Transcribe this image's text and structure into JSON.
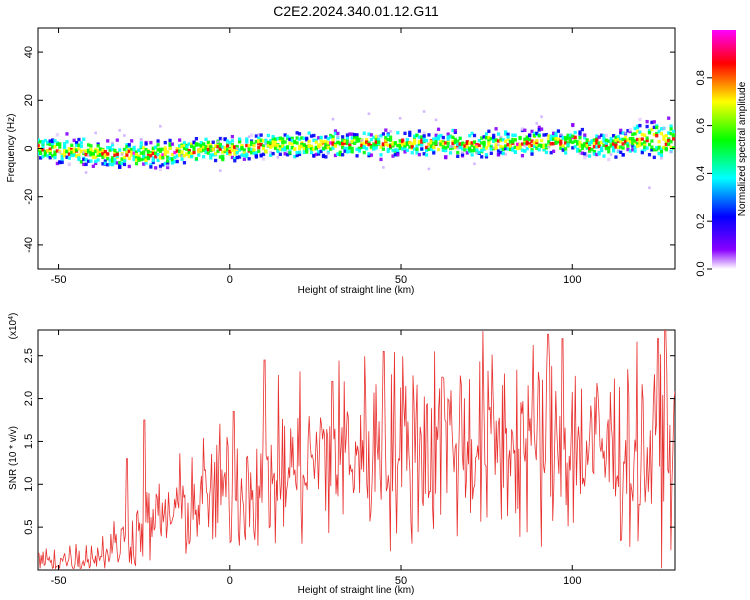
{
  "title": "C2E2.2024.340.01.12.G11",
  "chart_data": [
    {
      "type": "heatmap",
      "xlabel": "Height of straight line (km)",
      "ylabel": "Frequency (Hz)",
      "xlim": [
        -56,
        130
      ],
      "ylim": [
        -50,
        50
      ],
      "xticks": [
        -50,
        0,
        50,
        100
      ],
      "yticks": [
        -40,
        -20,
        0,
        20,
        40
      ],
      "colorbar": {
        "label": "Normalized spectral amplitude",
        "ticks": [
          "0.0",
          "0.2",
          "0.4",
          "0.6",
          "0.8"
        ],
        "range": [
          0,
          1
        ],
        "colors": [
          "#ffffff",
          "#8a00ff",
          "#0000ff",
          "#00ffff",
          "#00ff00",
          "#ffff00",
          "#ff0000",
          "#ff00ff"
        ]
      },
      "ridge": {
        "x": [
          -56,
          -40,
          -20,
          0,
          20,
          40,
          60,
          80,
          100,
          110,
          120,
          130
        ],
        "y": [
          0,
          -2,
          -2,
          0,
          2,
          2,
          2,
          2,
          3,
          1,
          4,
          3
        ]
      }
    },
    {
      "type": "line",
      "xlabel": "Height of straight line (km)",
      "ylabel": "SNR (10 * v/v)",
      "y_exponent": "(x10",
      "y_exponent_power": "4",
      "y_exponent_close": ")",
      "xlim": [
        -56,
        130
      ],
      "ylim": [
        0,
        2.8
      ],
      "xticks": [
        -50,
        0,
        50,
        100
      ],
      "yticks": [
        "0.5",
        "1.0",
        "1.5",
        "2.0",
        "2.5"
      ],
      "color": "#e8302e",
      "trend": {
        "x": [
          -56,
          -40,
          -30,
          -20,
          -10,
          0,
          10,
          20,
          30,
          40,
          50,
          60,
          70,
          80,
          90,
          100,
          110,
          120,
          130
        ],
        "y": [
          0.1,
          0.15,
          0.35,
          0.6,
          0.8,
          0.95,
          1.05,
          1.2,
          1.35,
          1.4,
          1.45,
          1.5,
          1.5,
          1.5,
          1.5,
          1.45,
          1.4,
          1.35,
          1.3
        ]
      },
      "peaks": [
        {
          "x": -30,
          "y": 1.3
        },
        {
          "x": -25,
          "y": 1.75
        },
        {
          "x": 1,
          "y": 1.85
        },
        {
          "x": 10,
          "y": 2.45
        },
        {
          "x": 30,
          "y": 2.2
        },
        {
          "x": 45,
          "y": 2.55
        },
        {
          "x": 62,
          "y": 2.25
        },
        {
          "x": 93,
          "y": 2.75
        },
        {
          "x": 97,
          "y": 2.7
        },
        {
          "x": 125,
          "y": 2.7
        },
        {
          "x": 127,
          "y": 2.8
        }
      ]
    }
  ]
}
